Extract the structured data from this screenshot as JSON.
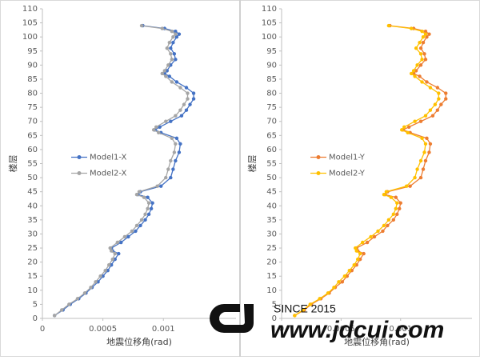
{
  "chart_data": [
    {
      "type": "line",
      "xlabel": "地震位移角(rad)",
      "ylabel": "楼层",
      "xlim": [
        0,
        0.0016
      ],
      "xticks": [
        0,
        0.0005,
        0.001
      ],
      "ylim": [
        0,
        110
      ],
      "yticks": [
        0,
        5,
        10,
        15,
        20,
        25,
        30,
        35,
        40,
        45,
        50,
        55,
        60,
        65,
        70,
        75,
        80,
        85,
        90,
        95,
        100,
        105,
        110
      ],
      "legend": "left",
      "y": [
        1,
        3,
        5,
        7,
        9,
        11,
        13,
        15,
        17,
        19,
        21,
        23,
        24,
        25,
        27,
        29,
        31,
        33,
        35,
        37,
        39,
        41,
        43,
        44,
        45,
        47,
        50,
        53,
        56,
        59,
        62,
        64,
        66,
        67,
        68,
        70,
        72,
        74,
        76,
        78,
        80,
        82,
        84,
        86,
        87,
        88,
        90,
        92,
        94,
        96,
        98,
        100,
        101,
        102,
        103,
        104
      ],
      "series": [
        {
          "name": "Model1-X",
          "color": "#4472c4",
          "x": [
            0.0001,
            0.00017,
            0.00023,
            0.0003,
            0.00036,
            0.00041,
            0.00046,
            0.0005,
            0.00054,
            0.00057,
            0.0006,
            0.00063,
            0.00058,
            0.00057,
            0.00065,
            0.00071,
            0.00077,
            0.00081,
            0.00085,
            0.00088,
            0.0009,
            0.00091,
            0.00087,
            0.00079,
            0.00081,
            0.00098,
            0.00106,
            0.00108,
            0.0011,
            0.00113,
            0.00114,
            0.00111,
            0.00098,
            0.00093,
            0.00097,
            0.00106,
            0.00115,
            0.00119,
            0.00122,
            0.00125,
            0.00125,
            0.00119,
            0.00111,
            0.00105,
            0.00101,
            0.00103,
            0.00106,
            0.0011,
            0.00109,
            0.00106,
            0.00108,
            0.00111,
            0.00113,
            0.0011,
            0.00101,
            0.00083
          ]
        },
        {
          "name": "Model2-X",
          "color": "#a5a5a5",
          "x": [
            0.0001,
            0.00016,
            0.00022,
            0.00029,
            0.00035,
            0.0004,
            0.00044,
            0.00048,
            0.00052,
            0.00055,
            0.00058,
            0.0006,
            0.00057,
            0.00056,
            0.00062,
            0.00068,
            0.00074,
            0.00078,
            0.00082,
            0.00085,
            0.00087,
            0.00088,
            0.00084,
            0.00078,
            0.0008,
            0.00095,
            0.00102,
            0.00104,
            0.00106,
            0.00109,
            0.0011,
            0.00107,
            0.00096,
            0.00092,
            0.00094,
            0.00102,
            0.0011,
            0.00114,
            0.00117,
            0.0012,
            0.0012,
            0.00114,
            0.00107,
            0.00102,
            0.00099,
            0.00101,
            0.00104,
            0.00107,
            0.00106,
            0.00103,
            0.00105,
            0.00108,
            0.0011,
            0.00107,
            0.00099,
            0.00082
          ]
        }
      ]
    },
    {
      "type": "line",
      "xlabel": "地震位移角(rad)",
      "ylabel": "楼层",
      "xlim": [
        0,
        0.0016
      ],
      "xticks": [
        0,
        0.0005,
        0.001
      ],
      "ylim": [
        0,
        110
      ],
      "yticks": [
        0,
        5,
        10,
        15,
        20,
        25,
        30,
        35,
        40,
        45,
        50,
        55,
        60,
        65,
        70,
        75,
        80,
        85,
        90,
        95,
        100,
        105,
        110
      ],
      "legend": "left",
      "y": [
        1,
        3,
        5,
        7,
        9,
        11,
        13,
        15,
        17,
        19,
        21,
        23,
        24,
        25,
        27,
        29,
        31,
        33,
        35,
        37,
        39,
        41,
        43,
        44,
        45,
        47,
        50,
        53,
        56,
        59,
        62,
        64,
        66,
        67,
        68,
        70,
        72,
        74,
        76,
        78,
        80,
        82,
        84,
        86,
        87,
        88,
        90,
        92,
        94,
        96,
        98,
        100,
        101,
        102,
        103,
        104
      ],
      "series": [
        {
          "name": "Model1-Y",
          "color": "#ed7d31",
          "x": [
            0.00011,
            0.00019,
            0.00025,
            0.00033,
            0.0004,
            0.00045,
            0.00051,
            0.00055,
            0.00059,
            0.00063,
            0.00066,
            0.00069,
            0.00064,
            0.00063,
            0.00072,
            0.00078,
            0.00085,
            0.00089,
            0.00094,
            0.00097,
            0.00099,
            0.001,
            0.00096,
            0.00087,
            0.00089,
            0.00108,
            0.00117,
            0.00119,
            0.00121,
            0.00124,
            0.00125,
            0.00122,
            0.00108,
            0.00102,
            0.00107,
            0.00117,
            0.00127,
            0.00131,
            0.00134,
            0.00138,
            0.00138,
            0.00131,
            0.00122,
            0.00116,
            0.00111,
            0.00113,
            0.00117,
            0.00121,
            0.0012,
            0.00117,
            0.00119,
            0.00122,
            0.00124,
            0.00121,
            0.00111,
            0.00091
          ]
        },
        {
          "name": "Model2-Y",
          "color": "#ffc000",
          "x": [
            0.00011,
            0.00018,
            0.00024,
            0.00032,
            0.00039,
            0.00044,
            0.00048,
            0.00053,
            0.00057,
            0.00061,
            0.00064,
            0.00066,
            0.00063,
            0.00062,
            0.00068,
            0.00075,
            0.00081,
            0.00086,
            0.0009,
            0.00094,
            0.00096,
            0.00097,
            0.00092,
            0.00086,
            0.00088,
            0.00105,
            0.00112,
            0.00114,
            0.00117,
            0.0012,
            0.00121,
            0.00118,
            0.00106,
            0.00101,
            0.00103,
            0.00112,
            0.00121,
            0.00125,
            0.00129,
            0.00132,
            0.00132,
            0.00125,
            0.00118,
            0.00112,
            0.00109,
            0.00111,
            0.00114,
            0.00118,
            0.00117,
            0.00113,
            0.00116,
            0.00119,
            0.00121,
            0.00118,
            0.00109,
            0.0009
          ]
        }
      ]
    }
  ],
  "watermark": {
    "since": "SINCE 2015",
    "site": "www.jdcui.com"
  }
}
